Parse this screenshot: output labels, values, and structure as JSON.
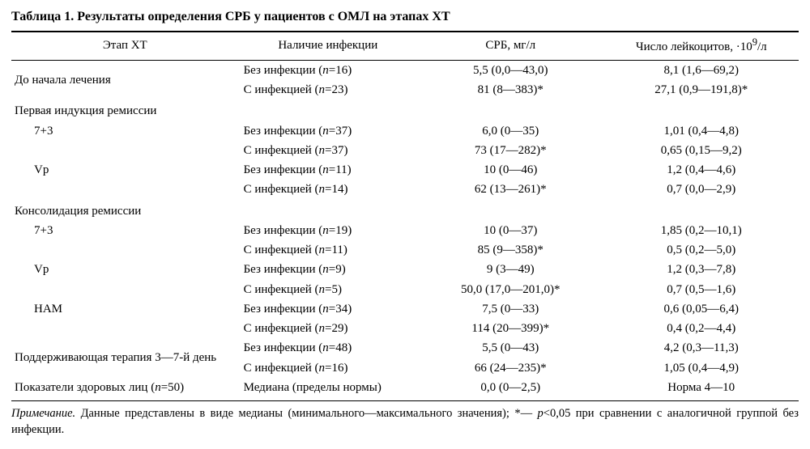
{
  "title_prefix_bold": "Таблица 1.",
  "title_rest_bold": " Результаты определения СРБ у пациентов с ОМЛ на этапах ХТ",
  "columns": {
    "stage": "Этап ХТ",
    "infection": "Наличие инфекции",
    "crp": "СРБ, мг/л",
    "leuko_html": "Число лейкоцитов, ·10<sup>9</sup>/л"
  },
  "sections": [
    {
      "stage": "До начала лечения",
      "rows": [
        {
          "infection_html": "Без инфекции (<span class=\"ital\">n</span>=16)",
          "crp": "5,5 (0,0—43,0)",
          "leuko": "8,1 (1,6—69,2)"
        },
        {
          "infection_html": "С инфекцией (<span class=\"ital\">n</span>=23)",
          "crp": "81 (8—383)*",
          "leuko": "27,1 (0,9—191,8)*"
        }
      ]
    },
    {
      "heading": "Первая индукция ремиссии",
      "subs": [
        {
          "label": "7+3",
          "rows": [
            {
              "infection_html": "Без инфекции (<span class=\"ital\">n</span>=37)",
              "crp": "6,0 (0—35)",
              "leuko": "1,01 (0,4—4,8)"
            },
            {
              "infection_html": "С инфекцией (<span class=\"ital\">n</span>=37)",
              "crp": "73 (17—282)*",
              "leuko": "0,65 (0,15—9,2)"
            }
          ]
        },
        {
          "label": "Vр",
          "rows": [
            {
              "infection_html": "Без инфекции (<span class=\"ital\">n</span>=11)",
              "crp": "10 (0—46)",
              "leuko": "1,2 (0,4—4,6)"
            },
            {
              "infection_html": "С инфекцией (<span class=\"ital\">n</span>=14)",
              "crp": "62 (13—261)*",
              "leuko": "0,7 (0,0—2,9)"
            }
          ]
        }
      ]
    },
    {
      "heading": "Консолидация ремиссии",
      "subs": [
        {
          "label": "7+3",
          "rows": [
            {
              "infection_html": "Без инфекции (<span class=\"ital\">n</span>=19)",
              "crp": "10 (0—37)",
              "leuko": "1,85 (0,2—10,1)"
            },
            {
              "infection_html": "С инфекцией (<span class=\"ital\">n</span>=11)",
              "crp": "85 (9—358)*",
              "leuko": "0,5 (0,2—5,0)"
            }
          ]
        },
        {
          "label": "Vр",
          "rows": [
            {
              "infection_html": "Без инфекции (<span class=\"ital\">n</span>=9)",
              "crp": "9 (3—49)",
              "leuko": "1,2 (0,3—7,8)"
            },
            {
              "infection_html": "С инфекцией (<span class=\"ital\">n</span>=5)",
              "crp": "50,0 (17,0—201,0)*",
              "leuko": "0,7 (0,5—1,6)"
            }
          ]
        },
        {
          "label": "HAM",
          "rows": [
            {
              "infection_html": "Без инфекции (<span class=\"ital\">n</span>=34)",
              "crp": "7,5 (0—33)",
              "leuko": "0,6 (0,05—6,4)"
            },
            {
              "infection_html": "С инфекцией (<span class=\"ital\">n</span>=29)",
              "crp": "114 (20—399)*",
              "leuko": "0,4 (0,2—4,4)"
            }
          ]
        }
      ]
    },
    {
      "stage": "Поддерживающая терапия 3—7-й день",
      "rows": [
        {
          "infection_html": "Без инфекции (<span class=\"ital\">n</span>=48)",
          "crp": "5,5 (0—43)",
          "leuko": "4,2 (0,3—11,3)"
        },
        {
          "infection_html": "С инфекцией (<span class=\"ital\">n</span>=16)",
          "crp": "66 (24—235)*",
          "leuko": "1,05 (0,4—4,9)"
        }
      ]
    },
    {
      "stage_html": "Показатели здоровых лиц (<span class=\"ital\">n</span>=50)",
      "rows": [
        {
          "infection_html": "Медиана (пределы нормы)",
          "crp": "0,0 (0—2,5)",
          "leuko": "Норма 4—10"
        }
      ],
      "last": true
    }
  ],
  "note_html": "<span class=\"ital\">Примечание.</span> Данные представлены в виде медианы (минимального—максимального значения); *— <span class=\"ital\">p</span>&lt;0,05 при сравнении с аналогичной группой без инфекции."
}
